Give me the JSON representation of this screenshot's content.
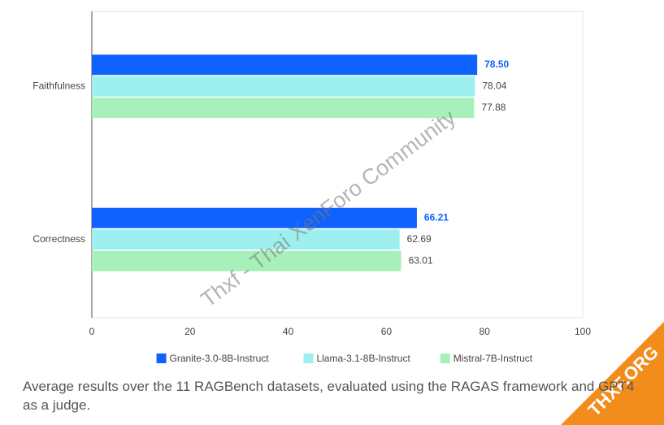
{
  "chart_data": {
    "type": "barh",
    "categories": [
      "Faithfulness",
      "Correctness"
    ],
    "series": [
      {
        "name": "Granite-3.0-8B-Instruct",
        "color": "#0f62fe",
        "values": [
          78.5,
          66.21
        ],
        "value_labels": [
          "78.50",
          "66.21"
        ]
      },
      {
        "name": "Llama-3.1-8B-Instruct",
        "color": "#9ef0f0",
        "values": [
          78.04,
          62.69
        ]
      },
      {
        "name": "Mistral-7B-Instruct",
        "color": "#a7f0ba",
        "values": [
          77.88,
          63.01
        ]
      }
    ],
    "xlim": [
      0,
      100
    ],
    "xticks": [
      0,
      20,
      40,
      60,
      80,
      100
    ],
    "grid": false,
    "legend": "bottom"
  },
  "caption": "Average results over the 11 RAGBench datasets, evaluated using the RAGAS framework and GPT4 as a judge.",
  "watermark": "Thxf - Thai XenForo Community",
  "badge": "THXF.ORG"
}
